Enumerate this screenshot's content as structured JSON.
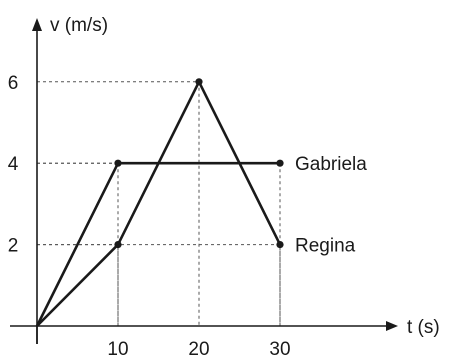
{
  "chart_data": {
    "type": "line",
    "xlabel": "t (s)",
    "ylabel": "v (m/s)",
    "xlim": [
      0,
      30
    ],
    "ylim": [
      0,
      6
    ],
    "x_ticks": [
      10,
      20,
      30
    ],
    "y_ticks": [
      2,
      4,
      6
    ],
    "x_tick_labels": [
      "10",
      "20",
      "30"
    ],
    "y_tick_labels": [
      "2",
      "4",
      "6"
    ],
    "grid": "dashed guide lines at marked points",
    "legend": "labels at line ends",
    "series": [
      {
        "name": "Gabriela",
        "points": [
          [
            0,
            0
          ],
          [
            10,
            4
          ],
          [
            30,
            4
          ]
        ],
        "color": "#1a1a1a"
      },
      {
        "name": "Regina",
        "points": [
          [
            0,
            0
          ],
          [
            10,
            2
          ],
          [
            20,
            6
          ],
          [
            30,
            2
          ]
        ],
        "color": "#1a1a1a"
      }
    ]
  }
}
